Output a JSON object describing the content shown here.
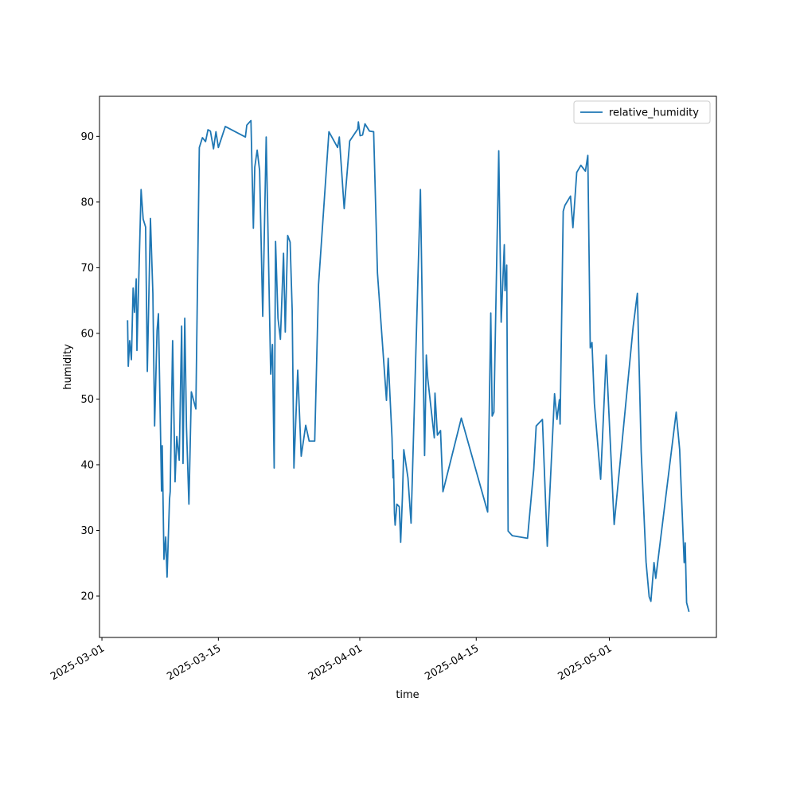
{
  "chart_data": {
    "type": "line",
    "xlabel": "time",
    "ylabel": "humidity",
    "x": [
      "2025-03-04T02:00",
      "2025-03-04T04:00",
      "2025-03-04T08:00",
      "2025-03-04T13:00",
      "2025-03-04T18:00",
      "2025-03-04T22:00",
      "2025-03-05T03:00",
      "2025-03-05T05:00",
      "2025-03-05T17:00",
      "2025-03-05T23:00",
      "2025-03-06T06:00",
      "2025-03-06T11:00",
      "2025-03-06T20:00",
      "2025-03-07T03:00",
      "2025-03-07T08:00",
      "2025-03-07T15:00",
      "2025-03-07T19:00",
      "2025-03-08T04:00",
      "2025-03-08T06:00",
      "2025-03-08T11:00",
      "2025-03-08T16:00",
      "2025-03-08T20:00",
      "2025-03-09T03:00",
      "2025-03-09T05:00",
      "2025-03-09T12:00",
      "2025-03-09T19:00",
      "2025-03-10T00:00",
      "2025-03-10T07:00",
      "2025-03-10T14:00",
      "2025-03-10T18:00",
      "2025-03-10T23:00",
      "2025-03-11T04:00",
      "2025-03-11T11:00",
      "2025-03-11T18:00",
      "2025-03-12T07:00",
      "2025-03-12T17:00",
      "2025-03-13T02:00",
      "2025-03-13T11:00",
      "2025-03-13T18:00",
      "2025-03-14T01:00",
      "2025-03-14T10:00",
      "2025-03-14T17:00",
      "2025-03-15T00:00",
      "2025-03-15T20:00",
      "2025-03-18T06:00",
      "2025-03-18T10:00",
      "2025-03-18T22:00",
      "2025-03-19T05:00",
      "2025-03-19T09:00",
      "2025-03-19T16:00",
      "2025-03-19T23:00",
      "2025-03-20T08:00",
      "2025-03-20T18:00",
      "2025-03-21T07:00",
      "2025-03-21T12:00",
      "2025-03-21T17:00",
      "2025-03-21T21:00",
      "2025-03-22T04:00",
      "2025-03-22T11:00",
      "2025-03-22T20:00",
      "2025-03-23T01:00",
      "2025-03-23T08:00",
      "2025-03-23T15:00",
      "2025-03-23T21:00",
      "2025-03-24T02:00",
      "2025-03-24T13:00",
      "2025-03-24T23:00",
      "2025-03-25T12:00",
      "2025-03-25T22:00",
      "2025-03-26T14:00",
      "2025-03-27T01:00",
      "2025-03-28T07:00",
      "2025-03-29T08:00",
      "2025-03-29T13:00",
      "2025-03-30T03:00",
      "2025-03-30T19:00",
      "2025-03-31T18:00",
      "2025-03-31T20:00",
      "2025-04-01T01:00",
      "2025-04-01T08:00",
      "2025-04-01T15:00",
      "2025-04-02T04:00",
      "2025-04-02T16:00",
      "2025-04-03T03:00",
      "2025-04-04T05:00",
      "2025-04-04T10:00",
      "2025-04-04T21:00",
      "2025-04-05T00:00",
      "2025-04-05T01:00",
      "2025-04-05T04:00",
      "2025-04-05T06:00",
      "2025-04-05T11:00",
      "2025-04-05T18:00",
      "2025-04-05T22:00",
      "2025-04-06T03:00",
      "2025-04-06T07:00",
      "2025-04-06T19:00",
      "2025-04-07T04:00",
      "2025-04-08T07:00",
      "2025-04-08T19:00",
      "2025-04-09T00:00",
      "2025-04-09T04:00",
      "2025-04-09T23:00",
      "2025-04-10T01:00",
      "2025-04-10T08:00",
      "2025-04-10T17:00",
      "2025-04-11T00:00",
      "2025-04-13T05:00",
      "2025-04-16T09:00",
      "2025-04-16T18:00",
      "2025-04-16T22:00",
      "2025-04-17T03:00",
      "2025-04-17T17:00",
      "2025-04-18T00:00",
      "2025-04-18T09:00",
      "2025-04-18T11:00",
      "2025-04-18T16:00",
      "2025-04-18T20:00",
      "2025-04-19T08:00",
      "2025-04-21T04:00",
      "2025-04-21T22:00",
      "2025-04-22T05:00",
      "2025-04-22T23:00",
      "2025-04-23T13:00",
      "2025-04-24T10:00",
      "2025-04-24T17:00",
      "2025-04-25T00:00",
      "2025-04-25T02:00",
      "2025-04-25T11:00",
      "2025-04-25T16:00",
      "2025-04-26T08:00",
      "2025-04-26T15:00",
      "2025-04-27T02:00",
      "2025-04-27T14:00",
      "2025-04-28T03:00",
      "2025-04-28T10:00",
      "2025-04-28T17:00",
      "2025-04-28T22:00",
      "2025-04-29T05:00",
      "2025-04-29T23:00",
      "2025-04-30T15:00",
      "2025-05-01T14:00",
      "2025-05-03T21:00",
      "2025-05-04T09:00",
      "2025-05-04T20:00",
      "2025-05-05T10:00",
      "2025-05-05T19:00",
      "2025-05-06T00:00",
      "2025-05-06T09:00",
      "2025-05-06T14:00",
      "2025-05-09T01:00",
      "2025-05-09T11:00",
      "2025-05-10T00:00",
      "2025-05-10T03:00",
      "2025-05-10T07:00",
      "2025-05-10T14:00"
    ],
    "series": [
      {
        "name": "relative_humidity",
        "color": "#1f77b4",
        "values": [
          62.0,
          55.0,
          58.9,
          56.0,
          66.9,
          63.2,
          68.3,
          57.4,
          81.9,
          77.4,
          76.2,
          54.2,
          77.5,
          66.1,
          45.9,
          60.4,
          63.0,
          36.0,
          42.9,
          25.6,
          29.0,
          22.9,
          34.7,
          35.9,
          58.9,
          37.4,
          44.3,
          40.7,
          61.1,
          40.2,
          62.3,
          45.7,
          34.0,
          51.1,
          48.5,
          88.3,
          89.8,
          89.2,
          91.0,
          90.8,
          88.1,
          90.7,
          88.3,
          91.5,
          89.9,
          91.7,
          92.4,
          76.0,
          85.3,
          87.9,
          84.8,
          62.6,
          89.9,
          53.8,
          58.3,
          39.5,
          74.0,
          62.3,
          59.1,
          72.2,
          60.2,
          74.9,
          73.9,
          63.5,
          39.5,
          54.4,
          41.3,
          46.0,
          43.6,
          43.6,
          67.4,
          90.7,
          88.3,
          89.9,
          79.0,
          89.3,
          91.1,
          92.2,
          90.1,
          90.2,
          91.9,
          90.8,
          90.7,
          69.2,
          49.8,
          56.2,
          44.1,
          38.0,
          40.7,
          32.6,
          30.8,
          34.0,
          33.6,
          28.2,
          35.0,
          42.3,
          38.0,
          31.1,
          81.9,
          41.4,
          56.7,
          53.2,
          44.1,
          50.9,
          44.5,
          45.2,
          35.9,
          47.1,
          32.8,
          63.1,
          47.4,
          48.0,
          87.8,
          61.7,
          73.5,
          66.5,
          70.4,
          29.9,
          29.2,
          28.8,
          39.3,
          45.9,
          46.9,
          27.6,
          50.8,
          46.9,
          49.9,
          46.2,
          78.6,
          79.5,
          80.9,
          76.1,
          84.5,
          85.6,
          84.7,
          87.1,
          57.8,
          58.6,
          49.3,
          37.8,
          56.7,
          30.9,
          61.1,
          66.1,
          42.0,
          25.2,
          19.9,
          19.2,
          25.1,
          22.7,
          48.0,
          42.3,
          25.1,
          28.1,
          19.0,
          17.6
        ]
      }
    ],
    "xlim": [
      "2025-02-28T17:00",
      "2025-05-13T21:00"
    ],
    "xticks": [
      "2025-03-01",
      "2025-03-15",
      "2025-04-01",
      "2025-04-15",
      "2025-05-01"
    ],
    "ylim": [
      13.7,
      96.1
    ],
    "yticks": [
      20,
      30,
      40,
      50,
      60,
      70,
      80,
      90
    ],
    "legend": "upper right"
  }
}
